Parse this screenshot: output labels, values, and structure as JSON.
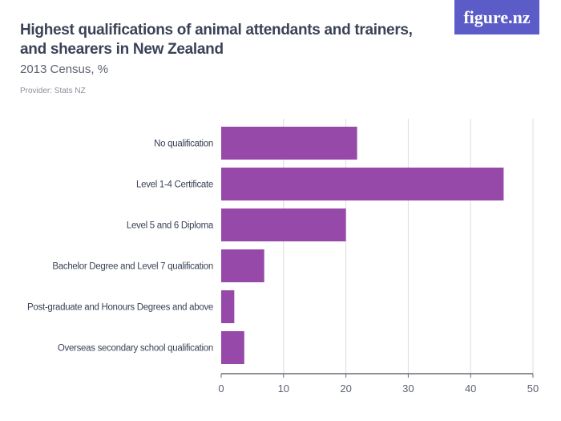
{
  "header": {
    "title": "Highest qualifications of animal attendants and trainers, and shearers in New Zealand",
    "subtitle": "2013 Census, %",
    "provider": "Provider: Stats NZ",
    "logo": "figure.nz"
  },
  "colors": {
    "bar": "#9649a9",
    "grid": "#dcdcdc",
    "axis": "#666b75",
    "logo_bg": "#5c5cc8"
  },
  "chart_data": {
    "type": "bar",
    "orientation": "horizontal",
    "categories": [
      "No qualification",
      "Level 1-4 Certificate",
      "Level 5 and 6 Diploma",
      "Bachelor Degree and Level 7 qualification",
      "Post-graduate and Honours Degrees and above",
      "Overseas secondary school qualification"
    ],
    "values": [
      21.8,
      45.3,
      20.0,
      6.9,
      2.1,
      3.7
    ],
    "xlim": [
      0,
      50
    ],
    "xticks": [
      0,
      10,
      20,
      30,
      40,
      50
    ],
    "grid": true,
    "xlabel": "",
    "ylabel": ""
  }
}
